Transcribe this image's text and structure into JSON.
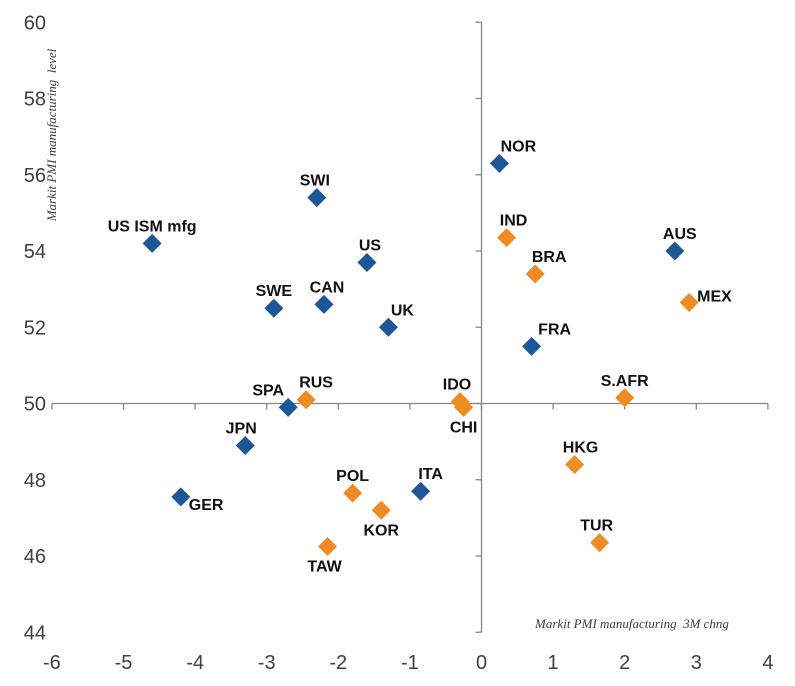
{
  "chart_data": {
    "type": "scatter",
    "xlabel": "Markit PMI manufacturing  3M chng",
    "ylabel": "Markit PMI manufacturing  level",
    "xlim": [
      -6,
      4
    ],
    "ylim": [
      44,
      60
    ],
    "x_ticks": [
      -6,
      -5,
      -4,
      -3,
      -2,
      -1,
      0,
      1,
      2,
      3,
      4
    ],
    "y_ticks": [
      44,
      46,
      48,
      50,
      52,
      54,
      56,
      58,
      60
    ],
    "axes_cross_at": {
      "x": 0,
      "y": 50
    },
    "grid": false,
    "legend": "none",
    "marker": "diamond",
    "colors": {
      "axis_line": "#878787",
      "tick_text": "#404040",
      "label_text": "#111111",
      "blue_series": "#1D5797",
      "orange_series": "#ED8C23",
      "background": "#ffffff"
    },
    "series": [
      {
        "name": "blue-diamonds",
        "color": "#1D5797",
        "points": [
          {
            "label": "US ISM mfg",
            "x": -4.6,
            "y": 54.2,
            "label_pos": "above",
            "label_dx": 0
          },
          {
            "label": "SWI",
            "x": -2.3,
            "y": 55.4,
            "label_pos": "above",
            "label_dx": -2
          },
          {
            "label": "US",
            "x": -1.6,
            "y": 53.7,
            "label_pos": "above",
            "label_dx": 3
          },
          {
            "label": "SWE",
            "x": -2.9,
            "y": 52.5,
            "label_pos": "above",
            "label_dx": 0
          },
          {
            "label": "CAN",
            "x": -2.2,
            "y": 52.6,
            "label_pos": "above",
            "label_dx": 3
          },
          {
            "label": "UK",
            "x": -1.3,
            "y": 52.0,
            "label_pos": "above",
            "label_dx": 14
          },
          {
            "label": "NOR",
            "x": 0.25,
            "y": 56.3,
            "label_pos": "above",
            "label_dx": 19
          },
          {
            "label": "AUS",
            "x": 2.7,
            "y": 54.0,
            "label_pos": "above",
            "label_dx": 5
          },
          {
            "label": "FRA",
            "x": 0.7,
            "y": 51.5,
            "label_pos": "above",
            "label_dx": 23
          },
          {
            "label": "SPA",
            "x": -2.7,
            "y": 49.9,
            "label_pos": "above",
            "label_dx": -20
          },
          {
            "label": "JPN",
            "x": -3.3,
            "y": 48.9,
            "label_pos": "above",
            "label_dx": -4
          },
          {
            "label": "GER",
            "x": -4.2,
            "y": 47.55,
            "label_pos": "right-down",
            "label_dx": 0
          },
          {
            "label": "ITA",
            "x": -0.85,
            "y": 47.7,
            "label_pos": "above",
            "label_dx": 10
          }
        ]
      },
      {
        "name": "orange-diamonds",
        "color": "#ED8C23",
        "points": [
          {
            "label": "IND",
            "x": 0.35,
            "y": 54.35,
            "label_pos": "above",
            "label_dx": 7
          },
          {
            "label": "BRA",
            "x": 0.75,
            "y": 53.4,
            "label_pos": "above",
            "label_dx": 14
          },
          {
            "label": "MEX",
            "x": 2.9,
            "y": 52.65,
            "label_pos": "right-up",
            "label_dx": 0
          },
          {
            "label": "RUS",
            "x": -2.45,
            "y": 50.1,
            "label_pos": "above",
            "label_dx": 10
          },
          {
            "label": "IDO",
            "x": -0.3,
            "y": 50.05,
            "label_pos": "above",
            "label_dx": -3
          },
          {
            "label": "CHI",
            "x": -0.25,
            "y": 49.9,
            "label_pos": "below",
            "label_dx": 0
          },
          {
            "label": "S.AFR",
            "x": 2.0,
            "y": 50.15,
            "label_pos": "above",
            "label_dx": 0
          },
          {
            "label": "HKG",
            "x": 1.3,
            "y": 48.4,
            "label_pos": "above",
            "label_dx": 6
          },
          {
            "label": "POL",
            "x": -1.8,
            "y": 47.65,
            "label_pos": "above",
            "label_dx": 0
          },
          {
            "label": "KOR",
            "x": -1.4,
            "y": 47.2,
            "label_pos": "below",
            "label_dx": 0
          },
          {
            "label": "TUR",
            "x": 1.65,
            "y": 46.35,
            "label_pos": "above",
            "label_dx": -3
          },
          {
            "label": "TAW",
            "x": -2.15,
            "y": 46.25,
            "label_pos": "below",
            "label_dx": -3
          }
        ]
      }
    ]
  }
}
